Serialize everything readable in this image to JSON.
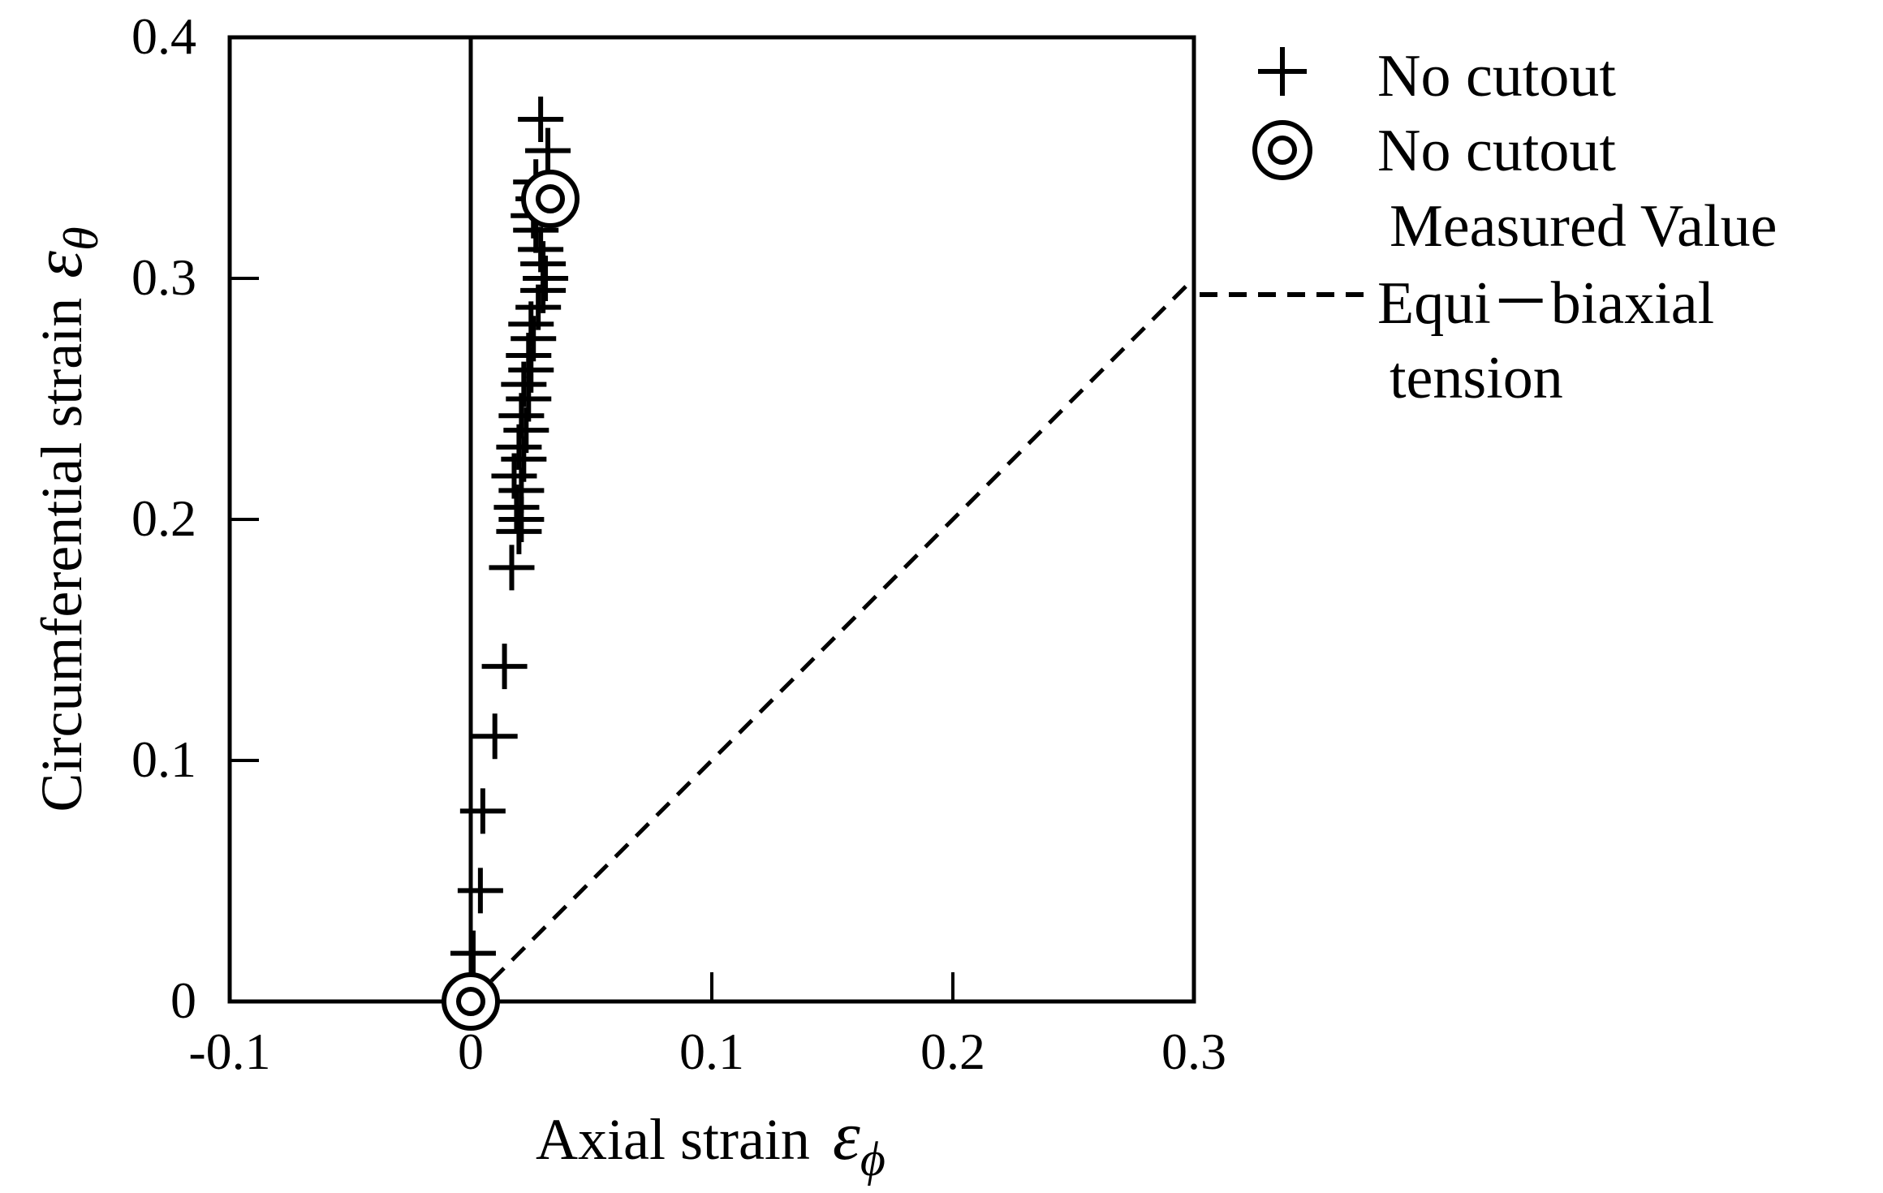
{
  "chart_data": {
    "type": "scatter",
    "xlabel": "Axial strain",
    "xlabel_symbol": "ε",
    "xlabel_subscript": "ϕ",
    "ylabel": "Circumferential strain",
    "ylabel_symbol": "ε",
    "ylabel_subscript": "θ",
    "xlim": [
      -0.1,
      0.3
    ],
    "ylim": [
      0,
      0.4
    ],
    "xticks": [
      -0.1,
      0,
      0.1,
      0.2,
      0.3
    ],
    "xtick_labels": [
      "-0.1",
      "0",
      "0.1",
      "0.2",
      "0.3"
    ],
    "yticks": [
      0,
      0.1,
      0.2,
      0.3,
      0.4
    ],
    "ytick_labels": [
      "0",
      "0.1",
      "0.2",
      "0.3",
      "0.4"
    ],
    "grid": false,
    "legend_position": "right",
    "series": [
      {
        "name": "No cutout",
        "marker": "plus",
        "color": "#000000",
        "points": [
          [
            0.001,
            0.02
          ],
          [
            0.004,
            0.046
          ],
          [
            0.005,
            0.079
          ],
          [
            0.01,
            0.11
          ],
          [
            0.014,
            0.139
          ],
          [
            0.017,
            0.18
          ],
          [
            0.02,
            0.195
          ],
          [
            0.021,
            0.2
          ],
          [
            0.019,
            0.205
          ],
          [
            0.021,
            0.212
          ],
          [
            0.018,
            0.218
          ],
          [
            0.022,
            0.225
          ],
          [
            0.02,
            0.23
          ],
          [
            0.023,
            0.237
          ],
          [
            0.021,
            0.243
          ],
          [
            0.024,
            0.25
          ],
          [
            0.022,
            0.256
          ],
          [
            0.025,
            0.262
          ],
          [
            0.024,
            0.268
          ],
          [
            0.026,
            0.275
          ],
          [
            0.025,
            0.281
          ],
          [
            0.028,
            0.288
          ],
          [
            0.03,
            0.295
          ],
          [
            0.031,
            0.3
          ],
          [
            0.03,
            0.306
          ],
          [
            0.029,
            0.312
          ],
          [
            0.027,
            0.32
          ],
          [
            0.026,
            0.326
          ],
          [
            0.028,
            0.333
          ],
          [
            0.027,
            0.34
          ],
          [
            0.032,
            0.353
          ],
          [
            0.029,
            0.366
          ]
        ]
      },
      {
        "name": "No cutout Measured Value",
        "legend_lines": [
          "No cutout",
          "Measured Value"
        ],
        "marker": "double-circle",
        "color": "#000000",
        "points": [
          [
            0.0,
            0.0
          ],
          [
            0.033,
            0.333
          ]
        ]
      },
      {
        "name": "Equi－biaxial tension",
        "legend_lines": [
          "Equi－biaxial",
          "tension"
        ],
        "marker": "dashed-line",
        "color": "#000000",
        "points": [
          [
            0.0,
            0.0
          ],
          [
            0.3,
            0.3
          ]
        ]
      }
    ],
    "reference_lines": [
      {
        "type": "vertical",
        "x": 0,
        "style": "solid"
      }
    ]
  }
}
